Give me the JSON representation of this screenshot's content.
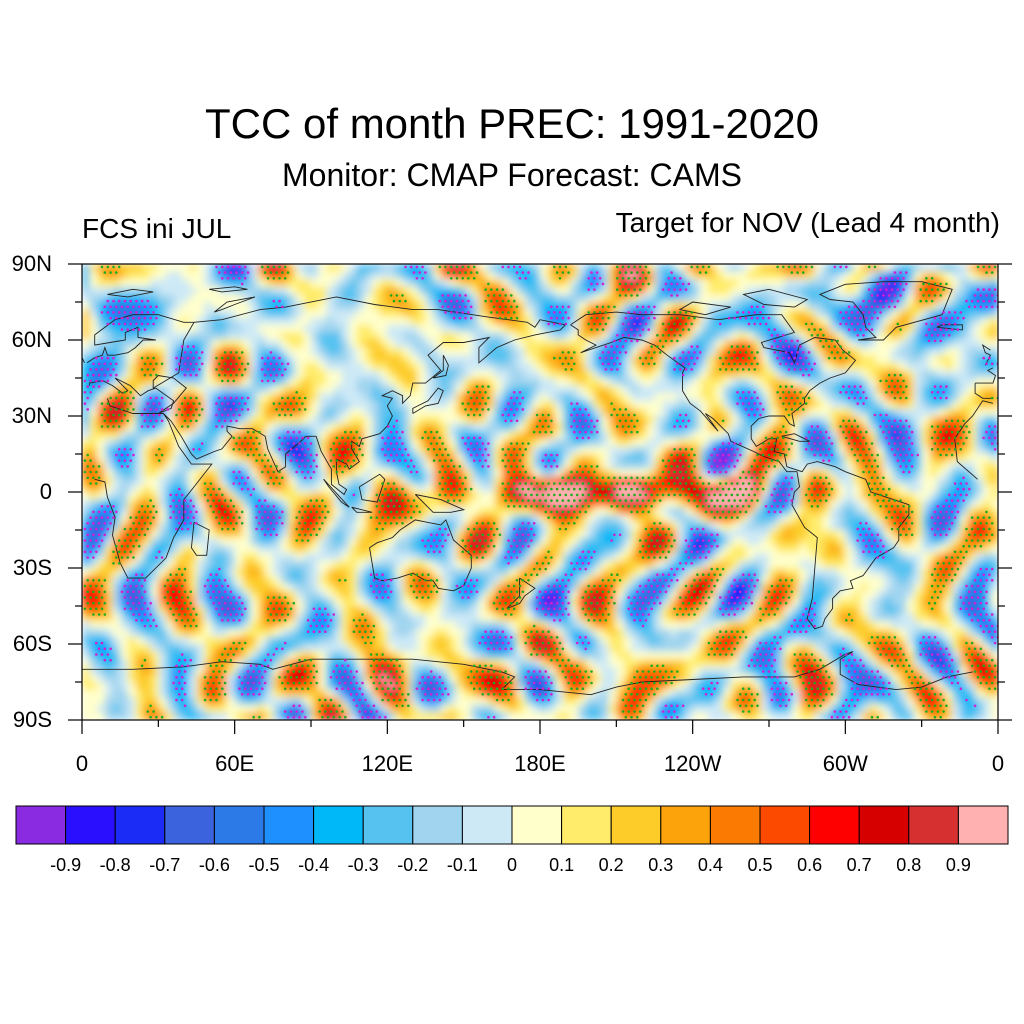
{
  "title": "TCC of month PREC: 1991-2020",
  "subtitle": "Monitor: CMAP   Forecast: CAMS",
  "left_label": "FCS ini JUL",
  "right_label": "Target for NOV (Lead 4 month)",
  "lat_labels": [
    "90N",
    "60N",
    "30N",
    "0",
    "30S",
    "60S",
    "90S"
  ],
  "lon_labels": [
    "0",
    "60E",
    "120E",
    "180E",
    "120W",
    "60W",
    "0"
  ],
  "colorbar": {
    "colors": [
      "#8a2be2",
      "#2a0fff",
      "#1a2cf5",
      "#3b63de",
      "#2b7ae8",
      "#1e90ff",
      "#00b8f7",
      "#56c2f0",
      "#a0d4ef",
      "#cde9f6",
      "#ffffcc",
      "#ffec6b",
      "#fdcc29",
      "#fca30b",
      "#fb7b02",
      "#fc4a00",
      "#ff0000",
      "#d70000",
      "#d73030",
      "#ffb0b0"
    ],
    "labels": [
      "-0.9",
      "-0.8",
      "-0.7",
      "-0.6",
      "-0.5",
      "-0.4",
      "-0.3",
      "-0.2",
      "-0.1",
      "0",
      "0.1",
      "0.2",
      "0.3",
      "0.4",
      "0.5",
      "0.6",
      "0.7",
      "0.8",
      "0.9"
    ]
  }
}
